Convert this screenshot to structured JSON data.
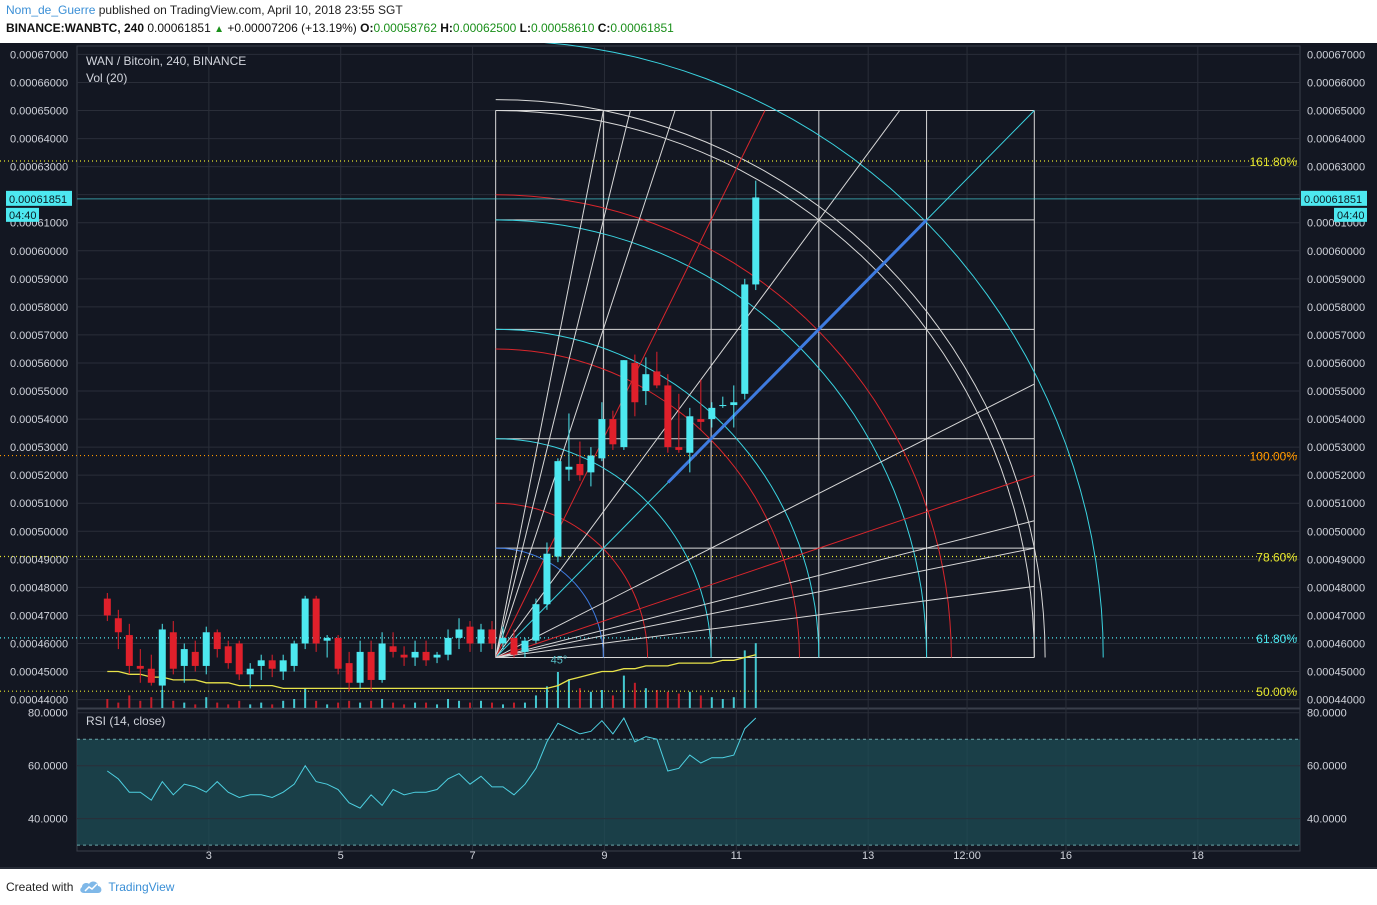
{
  "header": {
    "author": "Nom_de_Guerre",
    "published_text": "published on TradingView.com, April 10, 2018 23:55 SGT",
    "symbol": "BINANCE:WANBTC, 240",
    "last": "0.00061851",
    "change": "+0.00007206 (+13.19%)",
    "o_label": "O:",
    "o_value": "0.00058762",
    "h_label": "H:",
    "h_value": "0.00062500",
    "l_label": "L:",
    "l_value": "0.00058610",
    "c_label": "C:",
    "c_value": "0.00061851"
  },
  "footer": {
    "created_with": "Created with",
    "brand": "TradingView"
  },
  "colors": {
    "background": "#131722",
    "grid": "#2a2e39",
    "up": "#4de8f0",
    "down": "#e0202b",
    "fib_yellow": "#e6e62e",
    "fib_orange": "#ff9800",
    "fib_cyan": "#4de8f0",
    "gann_white": "#d8d8d8",
    "gann_red": "#d9262c",
    "gann_cyan": "#3ad3e0",
    "gann_blue": "#3e7be0",
    "rsi_line": "#4dd0e1",
    "rsi_band": "#1e4d55",
    "sma": "#e8e34a"
  },
  "chart_data": {
    "type": "candlestick",
    "legend": "WAN / Bitcoin, 240, BINANCE",
    "volume_label": "Vol (20)",
    "rsi_label": "RSI (14, close)",
    "price_axis": {
      "ticks": [
        "0.00067000",
        "0.00066000",
        "0.00065000",
        "0.00064000",
        "0.00063000",
        "0.00062000",
        "0.00061000",
        "0.00060000",
        "0.00059000",
        "0.00058000",
        "0.00057000",
        "0.00056000",
        "0.00055000",
        "0.00054000",
        "0.00053000",
        "0.00052000",
        "0.00051000",
        "0.00050000",
        "0.00049000",
        "0.00048000",
        "0.00047000",
        "0.00046000",
        "0.00045000",
        "0.00044000"
      ],
      "range": [
        0.000437,
        0.000673
      ],
      "last_price_label": "0.00061851",
      "countdown_label": "04:40"
    },
    "rsi_axis": {
      "ticks": [
        "80.0000",
        "60.0000",
        "40.0000"
      ],
      "range": [
        27.8,
        81.4
      ],
      "band": [
        30,
        70
      ]
    },
    "time_axis": {
      "ticks": [
        {
          "label": "3",
          "t": 3
        },
        {
          "label": "5",
          "t": 5
        },
        {
          "label": "7",
          "t": 7
        },
        {
          "label": "9",
          "t": 9
        },
        {
          "label": "11",
          "t": 11
        },
        {
          "label": "13",
          "t": 13
        },
        {
          "label": "12:00",
          "t": 14.5
        },
        {
          "label": "16",
          "t": 16
        },
        {
          "label": "18",
          "t": 18
        }
      ],
      "range": [
        1.0,
        19.55
      ]
    },
    "candles": [
      {
        "o": 0.000476,
        "h": 0.000478,
        "l": 0.000468,
        "c": 0.00047
      },
      {
        "o": 0.000469,
        "h": 0.000472,
        "l": 0.000458,
        "c": 0.000464
      },
      {
        "o": 0.000463,
        "h": 0.000467,
        "l": 0.000449,
        "c": 0.000452
      },
      {
        "o": 0.000452,
        "h": 0.000458,
        "l": 0.000446,
        "c": 0.000451
      },
      {
        "o": 0.000451,
        "h": 0.000456,
        "l": 0.000445,
        "c": 0.000446
      },
      {
        "o": 0.000445,
        "h": 0.000467,
        "l": 0.000443,
        "c": 0.000465
      },
      {
        "o": 0.000464,
        "h": 0.000468,
        "l": 0.000449,
        "c": 0.000451
      },
      {
        "o": 0.000452,
        "h": 0.00046,
        "l": 0.000446,
        "c": 0.000458
      },
      {
        "o": 0.000457,
        "h": 0.000461,
        "l": 0.00045,
        "c": 0.000452
      },
      {
        "o": 0.000452,
        "h": 0.000466,
        "l": 0.000449,
        "c": 0.000464
      },
      {
        "o": 0.000464,
        "h": 0.000465,
        "l": 0.000455,
        "c": 0.000458
      },
      {
        "o": 0.000459,
        "h": 0.000461,
        "l": 0.000451,
        "c": 0.000453
      },
      {
        "o": 0.00046,
        "h": 0.000461,
        "l": 0.000447,
        "c": 0.000449
      },
      {
        "o": 0.000449,
        "h": 0.000453,
        "l": 0.000444,
        "c": 0.000451
      },
      {
        "o": 0.000452,
        "h": 0.000456,
        "l": 0.000447,
        "c": 0.000454
      },
      {
        "o": 0.000454,
        "h": 0.000456,
        "l": 0.000448,
        "c": 0.000451
      },
      {
        "o": 0.00045,
        "h": 0.000456,
        "l": 0.000447,
        "c": 0.000454
      },
      {
        "o": 0.000452,
        "h": 0.000461,
        "l": 0.00045,
        "c": 0.00046
      },
      {
        "o": 0.00046,
        "h": 0.000477,
        "l": 0.000458,
        "c": 0.000476
      },
      {
        "o": 0.000476,
        "h": 0.000477,
        "l": 0.000457,
        "c": 0.00046
      },
      {
        "o": 0.000461,
        "h": 0.000463,
        "l": 0.000455,
        "c": 0.000462
      },
      {
        "o": 0.000462,
        "h": 0.000463,
        "l": 0.000449,
        "c": 0.000451
      },
      {
        "o": 0.000453,
        "h": 0.000457,
        "l": 0.000443,
        "c": 0.000446
      },
      {
        "o": 0.000446,
        "h": 0.000461,
        "l": 0.000444,
        "c": 0.000457
      },
      {
        "o": 0.000457,
        "h": 0.000461,
        "l": 0.000443,
        "c": 0.000447
      },
      {
        "o": 0.000447,
        "h": 0.000464,
        "l": 0.000446,
        "c": 0.00046
      },
      {
        "o": 0.000459,
        "h": 0.000464,
        "l": 0.000455,
        "c": 0.000457
      },
      {
        "o": 0.000456,
        "h": 0.000459,
        "l": 0.000452,
        "c": 0.000455
      },
      {
        "o": 0.000455,
        "h": 0.000461,
        "l": 0.000452,
        "c": 0.000457
      },
      {
        "o": 0.000457,
        "h": 0.000461,
        "l": 0.000452,
        "c": 0.000454
      },
      {
        "o": 0.000455,
        "h": 0.000457,
        "l": 0.000453,
        "c": 0.000456
      },
      {
        "o": 0.000456,
        "h": 0.000465,
        "l": 0.000454,
        "c": 0.000462
      },
      {
        "o": 0.000462,
        "h": 0.000469,
        "l": 0.000458,
        "c": 0.000465
      },
      {
        "o": 0.000466,
        "h": 0.000468,
        "l": 0.000457,
        "c": 0.00046
      },
      {
        "o": 0.00046,
        "h": 0.000467,
        "l": 0.000457,
        "c": 0.000465
      },
      {
        "o": 0.000465,
        "h": 0.000468,
        "l": 0.000458,
        "c": 0.00046
      },
      {
        "o": 0.00046,
        "h": 0.000466,
        "l": 0.000458,
        "c": 0.000462
      },
      {
        "o": 0.000462,
        "h": 0.000465,
        "l": 0.000455,
        "c": 0.000456
      },
      {
        "o": 0.000457,
        "h": 0.000462,
        "l": 0.000455,
        "c": 0.000461
      },
      {
        "o": 0.000461,
        "h": 0.000476,
        "l": 0.00046,
        "c": 0.000474
      },
      {
        "o": 0.000474,
        "h": 0.000496,
        "l": 0.000472,
        "c": 0.000492
      },
      {
        "o": 0.000491,
        "h": 0.000526,
        "l": 0.000489,
        "c": 0.000525
      },
      {
        "o": 0.000522,
        "h": 0.000542,
        "l": 0.000518,
        "c": 0.000523
      },
      {
        "o": 0.000524,
        "h": 0.000532,
        "l": 0.000518,
        "c": 0.00052
      },
      {
        "o": 0.000521,
        "h": 0.00053,
        "l": 0.000516,
        "c": 0.000527
      },
      {
        "o": 0.000526,
        "h": 0.000546,
        "l": 0.000525,
        "c": 0.00054
      },
      {
        "o": 0.00054,
        "h": 0.000543,
        "l": 0.000529,
        "c": 0.000531
      },
      {
        "o": 0.00053,
        "h": 0.000561,
        "l": 0.000529,
        "c": 0.000561
      },
      {
        "o": 0.00056,
        "h": 0.000563,
        "l": 0.000541,
        "c": 0.000546
      },
      {
        "o": 0.00055,
        "h": 0.000562,
        "l": 0.000545,
        "c": 0.000556
      },
      {
        "o": 0.000557,
        "h": 0.000564,
        "l": 0.000551,
        "c": 0.000552
      },
      {
        "o": 0.000552,
        "h": 0.000556,
        "l": 0.000528,
        "c": 0.00053
      },
      {
        "o": 0.00053,
        "h": 0.000549,
        "l": 0.000528,
        "c": 0.000529
      },
      {
        "o": 0.000528,
        "h": 0.000544,
        "l": 0.000521,
        "c": 0.000541
      },
      {
        "o": 0.00054,
        "h": 0.000554,
        "l": 0.000536,
        "c": 0.000539
      },
      {
        "o": 0.00054,
        "h": 0.000546,
        "l": 0.000537,
        "c": 0.000544
      },
      {
        "o": 0.000545,
        "h": 0.000548,
        "l": 0.000544,
        "c": 0.000545
      },
      {
        "o": 0.000545,
        "h": 0.000552,
        "l": 0.000537,
        "c": 0.000546
      },
      {
        "o": 0.000549,
        "h": 0.00059,
        "l": 0.000547,
        "c": 0.000588
      },
      {
        "o": 0.000588,
        "h": 0.000625,
        "l": 0.000586,
        "c": 0.000619
      }
    ],
    "volume": [
      0.25,
      0.15,
      0.35,
      0.2,
      0.3,
      0.5,
      0.2,
      0.15,
      0.1,
      0.3,
      0.15,
      0.1,
      0.2,
      0.1,
      0.15,
      0.1,
      0.2,
      0.25,
      0.55,
      0.2,
      0.1,
      0.15,
      0.2,
      0.15,
      0.2,
      0.25,
      0.15,
      0.1,
      0.15,
      0.15,
      0.1,
      0.25,
      0.2,
      0.15,
      0.2,
      0.15,
      0.1,
      0.15,
      0.15,
      0.35,
      0.6,
      1.0,
      0.8,
      0.55,
      0.45,
      0.5,
      0.35,
      0.9,
      0.7,
      0.55,
      0.5,
      0.45,
      0.4,
      0.45,
      0.35,
      0.3,
      0.25,
      0.3,
      1.6,
      1.8
    ],
    "sma20": [
      0.00045,
      0.00045,
      0.000449,
      0.000449,
      0.000448,
      0.000448,
      0.000447,
      0.000447,
      0.000447,
      0.000446,
      0.000446,
      0.000446,
      0.000445,
      0.000445,
      0.000445,
      0.000445,
      0.000444,
      0.000444,
      0.000444,
      0.000444,
      0.000444,
      0.000444,
      0.000444,
      0.000444,
      0.000444,
      0.000444,
      0.000444,
      0.000444,
      0.000444,
      0.000444,
      0.000444,
      0.000444,
      0.000444,
      0.000444,
      0.000444,
      0.000444,
      0.000444,
      0.000444,
      0.000444,
      0.000444,
      0.000444,
      0.000445,
      0.000447,
      0.000448,
      0.000449,
      0.00045,
      0.00045,
      0.000451,
      0.000451,
      0.000452,
      0.000452,
      0.000452,
      0.000453,
      0.000453,
      0.000453,
      0.000453,
      0.000454,
      0.000454,
      0.000455,
      0.000456
    ],
    "rsi": [
      58,
      55,
      50,
      50,
      47,
      54,
      49,
      53,
      52,
      50,
      54,
      50,
      48,
      49,
      49,
      48,
      50,
      53,
      60,
      54,
      53,
      51,
      46,
      44,
      49,
      45,
      51,
      49,
      50,
      50,
      51,
      55,
      57,
      53,
      56,
      52,
      52,
      49,
      53,
      59,
      69,
      76,
      74,
      72,
      73,
      77,
      72,
      78,
      69,
      71,
      70,
      58,
      59,
      64,
      61,
      63,
      63,
      64,
      74,
      78
    ],
    "fib_levels": [
      {
        "label": "161.80%",
        "price": 0.000632,
        "color": "#e6e62e"
      },
      {
        "label": "100.00%",
        "price": 0.000527,
        "color": "#ff9800"
      },
      {
        "label": "78.60%",
        "price": 0.000491,
        "color": "#e6e62e"
      },
      {
        "label": "61.80%",
        "price": 0.000462,
        "color": "#4de8f0"
      },
      {
        "label": "50.00%",
        "price": 0.000443,
        "color": "#e6e62e"
      }
    ],
    "gann_box": {
      "t0": 7.35,
      "t1": 15.52,
      "p_bottom": 0.000455,
      "p_top": 0.00065,
      "angle_label": "45°"
    }
  }
}
